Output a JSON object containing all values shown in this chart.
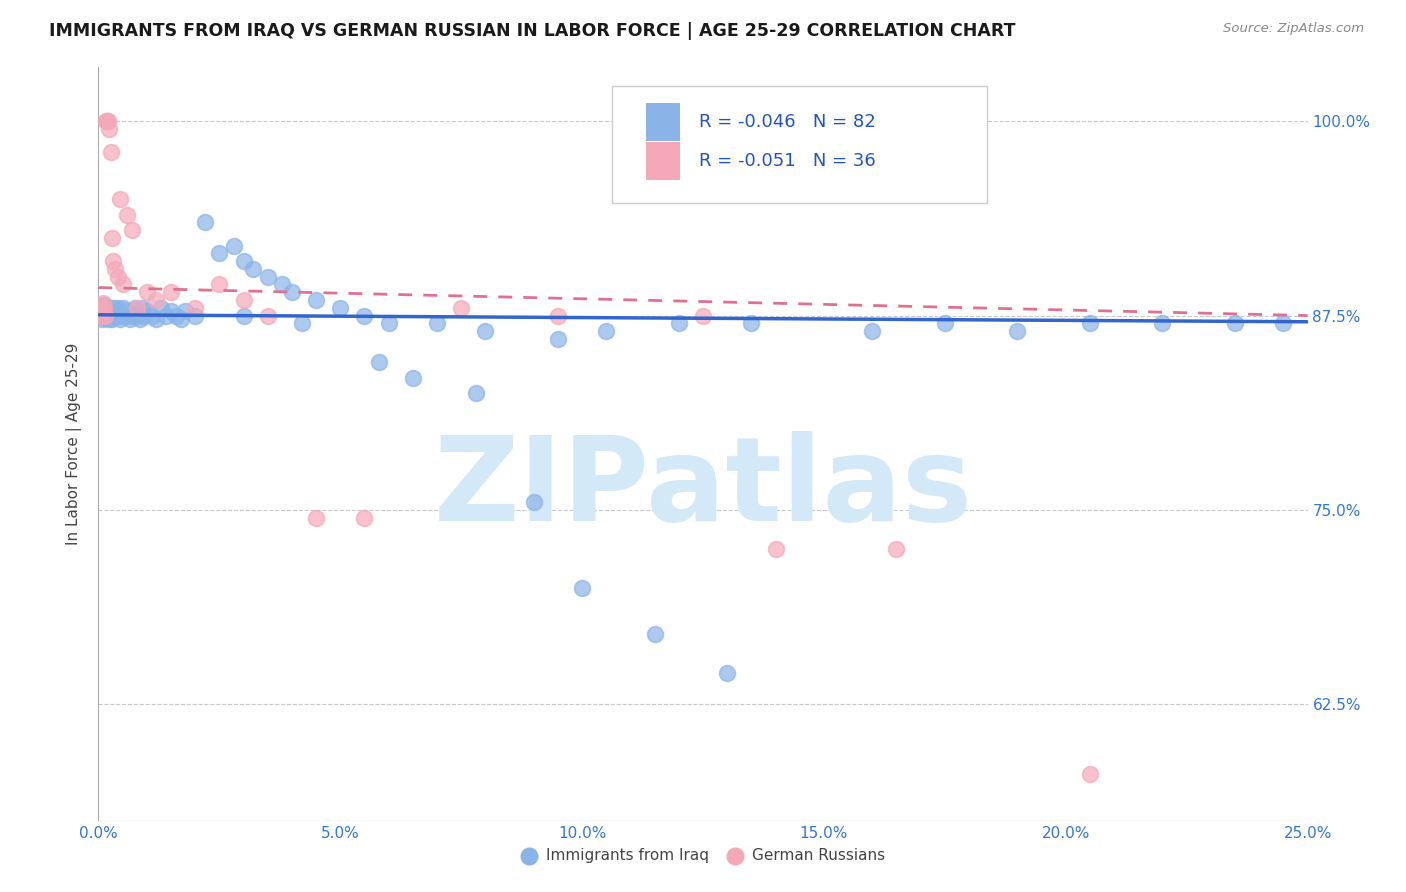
{
  "title": "IMMIGRANTS FROM IRAQ VS GERMAN RUSSIAN IN LABOR FORCE | AGE 25-29 CORRELATION CHART",
  "source": "Source: ZipAtlas.com",
  "ylabel": "In Labor Force | Age 25-29",
  "x_tick_labels": [
    "0.0%",
    "5.0%",
    "10.0%",
    "15.0%",
    "20.0%",
    "25.0%"
  ],
  "x_tick_values": [
    0.0,
    5.0,
    10.0,
    15.0,
    20.0,
    25.0
  ],
  "y_tick_labels": [
    "62.5%",
    "75.0%",
    "87.5%",
    "100.0%"
  ],
  "y_tick_values": [
    62.5,
    75.0,
    87.5,
    100.0
  ],
  "xlim": [
    0.0,
    25.0
  ],
  "ylim": [
    55.0,
    103.5
  ],
  "legend_r_iraq": "-0.046",
  "legend_n_iraq": "82",
  "legend_r_german": "-0.051",
  "legend_n_german": "36",
  "legend_label_iraq": "Immigrants from Iraq",
  "legend_label_german": "German Russians",
  "color_iraq": "#8ab4e8",
  "color_german": "#f4a8b8",
  "color_trendline_iraq": "#3366cc",
  "color_trendline_german": "#e07090",
  "watermark_text": "ZIPatlas",
  "watermark_color": "#d3e9f7",
  "iraq_trend_x0": 0.0,
  "iraq_trend_y0": 87.55,
  "iraq_trend_x1": 25.0,
  "iraq_trend_y1": 87.1,
  "german_trend_x0": 0.0,
  "german_trend_y0": 89.3,
  "german_trend_x1": 25.0,
  "german_trend_y1": 87.5,
  "iraq_x": [
    0.05,
    0.07,
    0.09,
    0.1,
    0.11,
    0.12,
    0.13,
    0.14,
    0.15,
    0.16,
    0.17,
    0.18,
    0.19,
    0.2,
    0.21,
    0.22,
    0.23,
    0.24,
    0.25,
    0.27,
    0.28,
    0.3,
    0.32,
    0.35,
    0.38,
    0.4,
    0.42,
    0.45,
    0.5,
    0.55,
    0.6,
    0.65,
    0.7,
    0.75,
    0.8,
    0.85,
    0.9,
    0.95,
    1.0,
    1.1,
    1.2,
    1.3,
    1.4,
    1.5,
    1.6,
    1.7,
    1.8,
    2.0,
    2.2,
    2.5,
    2.8,
    3.0,
    3.2,
    3.5,
    3.8,
    4.0,
    4.5,
    5.0,
    5.5,
    6.0,
    7.0,
    8.0,
    9.5,
    10.5,
    12.0,
    13.5,
    16.0,
    17.5,
    19.0,
    20.5,
    22.0,
    23.5,
    3.0,
    4.2,
    5.8,
    6.5,
    7.8,
    9.0,
    10.0,
    11.5,
    13.0,
    24.5
  ],
  "iraq_y": [
    87.5,
    87.3,
    88.0,
    87.8,
    88.2,
    87.5,
    88.0,
    87.5,
    87.8,
    88.0,
    87.5,
    88.0,
    87.5,
    87.3,
    87.8,
    87.5,
    88.0,
    87.5,
    88.0,
    87.5,
    87.3,
    87.8,
    87.5,
    88.0,
    87.5,
    88.0,
    87.5,
    87.3,
    88.0,
    87.5,
    87.8,
    87.3,
    87.5,
    88.0,
    87.5,
    87.3,
    88.0,
    87.5,
    87.8,
    87.5,
    87.3,
    88.0,
    87.5,
    87.8,
    87.5,
    87.3,
    87.8,
    87.5,
    93.5,
    91.5,
    92.0,
    91.0,
    90.5,
    90.0,
    89.5,
    89.0,
    88.5,
    88.0,
    87.5,
    87.0,
    87.0,
    86.5,
    86.0,
    86.5,
    87.0,
    87.0,
    86.5,
    87.0,
    86.5,
    87.0,
    87.0,
    87.0,
    87.5,
    87.0,
    84.5,
    83.5,
    82.5,
    75.5,
    70.0,
    67.0,
    64.5,
    87.0
  ],
  "german_x": [
    0.05,
    0.07,
    0.09,
    0.1,
    0.12,
    0.13,
    0.15,
    0.17,
    0.18,
    0.2,
    0.22,
    0.25,
    0.28,
    0.3,
    0.35,
    0.4,
    0.45,
    0.5,
    0.6,
    0.7,
    0.8,
    1.0,
    1.2,
    1.5,
    2.0,
    2.5,
    3.0,
    3.5,
    4.5,
    5.5,
    7.5,
    9.5,
    12.5,
    14.0,
    16.5,
    20.5
  ],
  "german_y": [
    88.0,
    87.5,
    88.3,
    87.8,
    88.0,
    87.5,
    100.0,
    100.0,
    100.0,
    100.0,
    99.5,
    98.0,
    92.5,
    91.0,
    90.5,
    90.0,
    95.0,
    89.5,
    94.0,
    93.0,
    88.0,
    89.0,
    88.5,
    89.0,
    88.0,
    89.5,
    88.5,
    87.5,
    74.5,
    74.5,
    88.0,
    87.5,
    87.5,
    72.5,
    72.5,
    58.0
  ]
}
